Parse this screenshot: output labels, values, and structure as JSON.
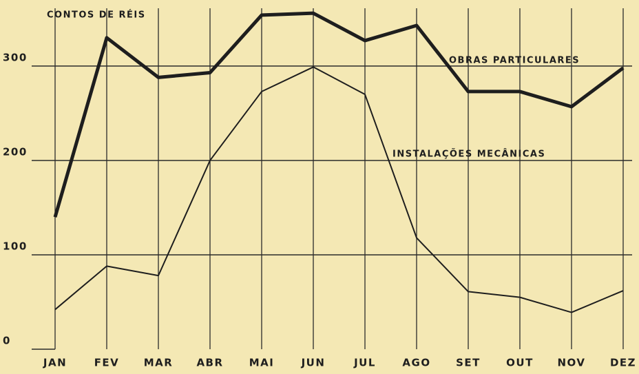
{
  "chart_data": {
    "type": "line",
    "y_label": "CONTOS DE RÉIS",
    "categories": [
      "JAN",
      "FEV",
      "MAR",
      "ABR",
      "MAI",
      "JUN",
      "JUL",
      "AGO",
      "SET",
      "OUT",
      "NOV",
      "DEZ"
    ],
    "series": [
      {
        "name": "OBRAS PARTICULARES",
        "color": "#1e1e1e",
        "width": 5,
        "values": [
          140,
          330,
          288,
          293,
          354,
          356,
          327,
          343,
          273,
          273,
          257,
          298
        ]
      },
      {
        "name": "INSTALAÇÕES MECÂNICAS",
        "color": "#1e1e1e",
        "width": 2,
        "values": [
          42,
          88,
          78,
          200,
          273,
          299,
          270,
          118,
          61,
          55,
          39,
          62
        ]
      }
    ],
    "ylim": [
      0,
      370
    ],
    "yticks": [
      0,
      100,
      200,
      300
    ],
    "grid": true
  }
}
